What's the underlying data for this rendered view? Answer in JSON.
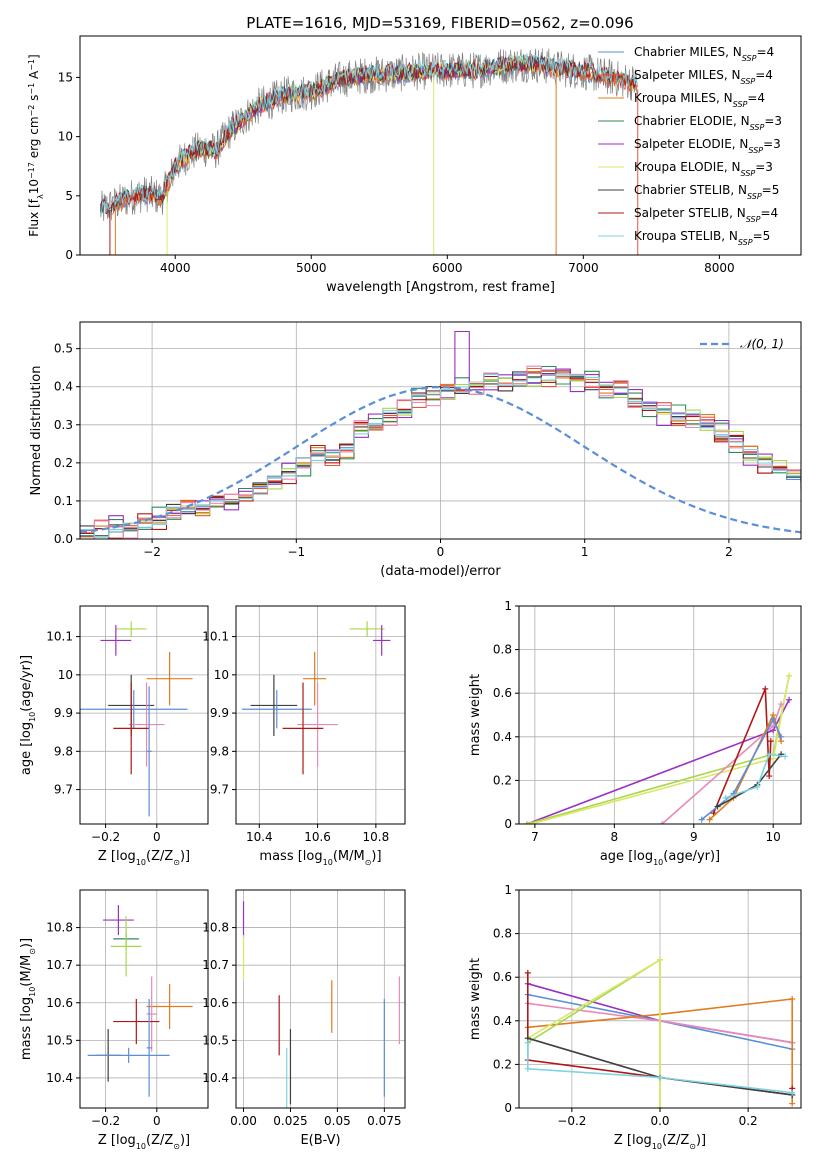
{
  "figure_title": "PLATE=1616, MJD=53169, FIBERID=0562, z=0.096",
  "colors": {
    "data": "#808080",
    "chabrier_miles": "#5b8fd6",
    "salpeter_miles": "#e8563a",
    "kroupa_miles": "#e07b1f",
    "chabrier_elodie": "#2e8b57",
    "salpeter_elodie": "#9b30c0",
    "kroupa_elodie": "#d9e86a",
    "chabrier_stelib": "#404040",
    "salpeter_stelib": "#b01818",
    "kroupa_stelib": "#7dd3e0",
    "pink": "#e88ab8",
    "lime": "#a8d84a",
    "gaussian": "#5b8fd6",
    "grid": "#b0b0b0"
  },
  "chart_data": [
    {
      "id": "spectrum",
      "type": "line",
      "xlabel": "wavelength [Angstrom, rest frame]",
      "ylabel": "Flux [f",
      "ylabel_parts": [
        "Flux [f",
        "λ",
        "10",
        "−17",
        " erg cm",
        "−2",
        " s",
        "−1",
        " A",
        "−1",
        "]"
      ],
      "xlim": [
        3300,
        8600
      ],
      "ylim": [
        0,
        18.5
      ],
      "xticks": [
        4000,
        5000,
        6000,
        7000,
        8000
      ],
      "yticks": [
        0,
        5,
        10,
        15
      ],
      "grid": false,
      "legend_position": "right",
      "legend": [
        {
          "model": "Chabrier MILES",
          "n": "4",
          "color_key": "chabrier_miles"
        },
        {
          "model": "Salpeter MILES",
          "n": "4",
          "color_key": "salpeter_miles"
        },
        {
          "model": "Kroupa MILES",
          "n": "4",
          "color_key": "kroupa_miles"
        },
        {
          "model": "Chabrier ELODIE",
          "n": "3",
          "color_key": "chabrier_elodie"
        },
        {
          "model": "Salpeter ELODIE",
          "n": "3",
          "color_key": "salpeter_elodie"
        },
        {
          "model": "Kroupa ELODIE",
          "n": "3",
          "color_key": "kroupa_elodie"
        },
        {
          "model": "Chabrier STELIB",
          "n": "5",
          "color_key": "chabrier_stelib"
        },
        {
          "model": "Salpeter STELIB",
          "n": "4",
          "color_key": "salpeter_stelib"
        },
        {
          "model": "Kroupa STELIB",
          "n": "5",
          "color_key": "kroupa_stelib"
        }
      ],
      "legend_n_prefix": "N",
      "legend_n_sub": "SSP",
      "continuum": {
        "x": [
          3450,
          3600,
          3700,
          3800,
          3900,
          4000,
          4100,
          4200,
          4300,
          4400,
          4500,
          4600,
          4800,
          5000,
          5200,
          5400,
          5600,
          5800,
          6000,
          6200,
          6400,
          6600,
          6800,
          7000,
          7200,
          7400
        ],
        "y": [
          3.8,
          4.5,
          5.0,
          5.2,
          4.8,
          7.5,
          8.5,
          9.0,
          8.8,
          10.5,
          11.5,
          12.5,
          13.5,
          13.8,
          14.8,
          15.2,
          15.3,
          15.5,
          15.6,
          15.6,
          16.0,
          16.2,
          15.8,
          15.5,
          15.0,
          14.5
        ]
      }
    },
    {
      "id": "residuals",
      "type": "histogram",
      "xlabel": "(data-model)/error",
      "ylabel": "Normed distribution",
      "xlim": [
        -2.5,
        2.5
      ],
      "ylim": [
        0,
        0.57
      ],
      "xticks": [
        -2,
        -1,
        0,
        1,
        2
      ],
      "yticks": [
        0.0,
        0.1,
        0.2,
        0.3,
        0.4,
        0.5
      ],
      "grid": true,
      "legend_position": "top-right",
      "legend": "𝒩(0, 1)",
      "bin_width": 0.1,
      "bins_from": -2.5,
      "histogram_values": [
        0.02,
        0.02,
        0.03,
        0.03,
        0.04,
        0.05,
        0.07,
        0.08,
        0.08,
        0.1,
        0.1,
        0.12,
        0.14,
        0.15,
        0.17,
        0.2,
        0.22,
        0.22,
        0.24,
        0.28,
        0.3,
        0.33,
        0.34,
        0.37,
        0.38,
        0.38,
        0.4,
        0.4,
        0.42,
        0.41,
        0.42,
        0.42,
        0.43,
        0.44,
        0.42,
        0.41,
        0.4,
        0.39,
        0.36,
        0.35,
        0.33,
        0.32,
        0.32,
        0.3,
        0.28,
        0.26,
        0.22,
        0.2,
        0.19,
        0.17,
        0.15,
        0.14,
        0.13,
        0.11,
        0.09,
        0.08,
        0.07,
        0.06,
        0.05,
        0.04,
        0.03,
        0.03,
        0.02,
        0.02,
        0.02,
        0.02
      ],
      "series_offsets": [
        0.0,
        0.015,
        -0.012,
        0.02,
        -0.018,
        0.008,
        -0.006,
        0.012,
        -0.02
      ]
    },
    {
      "id": "age_vs_z",
      "type": "scatter",
      "xlabel": "Z [log",
      "xlabel_parts": [
        "Z [log",
        "10",
        "(Z/Z",
        "⊙",
        ")]"
      ],
      "ylabel_parts": [
        "age  [log",
        "10",
        "(age/yr)]"
      ],
      "xlim": [
        -0.3,
        0.2
      ],
      "ylim": [
        9.61,
        10.18
      ],
      "xticks": [
        -0.2,
        0.0
      ],
      "yticks": [
        9.7,
        9.8,
        9.9,
        10.0,
        10.1
      ],
      "grid": true,
      "points": [
        {
          "x": -0.1,
          "y": 10.12,
          "xerr": 0.06,
          "yerr": 0.02,
          "color_key": "lime"
        },
        {
          "x": -0.16,
          "y": 10.09,
          "xerr": 0.06,
          "yerr": 0.04,
          "color_key": "salpeter_elodie"
        },
        {
          "x": 0.05,
          "y": 9.99,
          "xerr": 0.09,
          "yerr": 0.07,
          "color_key": "kroupa_miles"
        },
        {
          "x": -0.1,
          "y": 9.92,
          "xerr": 0.09,
          "yerr": 0.08,
          "color_key": "chabrier_stelib"
        },
        {
          "x": -0.09,
          "y": 9.91,
          "xerr": 0.21,
          "yerr": 0.05,
          "color_key": "chabrier_miles"
        },
        {
          "x": -0.04,
          "y": 9.87,
          "xerr": 0.07,
          "yerr": 0.11,
          "color_key": "pink"
        },
        {
          "x": -0.1,
          "y": 9.86,
          "xerr": 0.07,
          "yerr": 0.12,
          "color_key": "salpeter_stelib"
        },
        {
          "x": -0.03,
          "y": 9.8,
          "xerr": 0.01,
          "yerr": 0.17,
          "color_key": "chabrier_miles"
        }
      ]
    },
    {
      "id": "age_vs_mass",
      "type": "scatter",
      "xlabel_parts": [
        "mass [log",
        "10",
        "(M/M",
        "⊙",
        ")]"
      ],
      "xlim": [
        10.32,
        10.9
      ],
      "ylim": [
        9.61,
        10.18
      ],
      "xticks": [
        10.4,
        10.6,
        10.8
      ],
      "yticks": [
        9.7,
        9.8,
        9.9,
        10.0,
        10.1
      ],
      "grid": true,
      "points": [
        {
          "x": 10.77,
          "y": 10.12,
          "xerr": 0.06,
          "yerr": 0.02,
          "color_key": "lime"
        },
        {
          "x": 10.82,
          "y": 10.09,
          "xerr": 0.03,
          "yerr": 0.04,
          "color_key": "salpeter_elodie"
        },
        {
          "x": 10.59,
          "y": 9.99,
          "xerr": 0.04,
          "yerr": 0.07,
          "color_key": "kroupa_miles"
        },
        {
          "x": 10.45,
          "y": 9.92,
          "xerr": 0.08,
          "yerr": 0.08,
          "color_key": "chabrier_stelib"
        },
        {
          "x": 10.46,
          "y": 9.91,
          "xerr": 0.12,
          "yerr": 0.05,
          "color_key": "chabrier_miles"
        },
        {
          "x": 10.6,
          "y": 9.87,
          "xerr": 0.07,
          "yerr": 0.11,
          "color_key": "pink"
        },
        {
          "x": 10.55,
          "y": 9.86,
          "xerr": 0.07,
          "yerr": 0.12,
          "color_key": "salpeter_stelib"
        }
      ]
    },
    {
      "id": "weight_vs_age",
      "type": "line",
      "xlabel_parts": [
        "age  [log",
        "10",
        "(age/yr)]"
      ],
      "ylabel": "mass weight",
      "xlim": [
        6.8,
        10.35
      ],
      "ylim": [
        0,
        1.0
      ],
      "xticks": [
        7,
        8,
        9,
        10
      ],
      "yticks": [
        0.0,
        0.2,
        0.4,
        0.6,
        0.8,
        1.0
      ],
      "grid": true,
      "series": [
        {
          "color_key": "salpeter_elodie",
          "x": [
            6.9,
            10.0,
            10.2
          ],
          "y": [
            0.0,
            0.43,
            0.57
          ]
        },
        {
          "color_key": "lime",
          "x": [
            6.9,
            10.0,
            10.2
          ],
          "y": [
            0.0,
            0.32,
            0.68
          ]
        },
        {
          "color_key": "kroupa_elodie",
          "x": [
            6.95,
            10.0,
            10.2
          ],
          "y": [
            0.0,
            0.3,
            0.68
          ]
        },
        {
          "color_key": "pink",
          "x": [
            8.6,
            10.0,
            10.1
          ],
          "y": [
            0.0,
            0.45,
            0.55
          ]
        },
        {
          "color_key": "salpeter_stelib",
          "x": [
            9.25,
            9.9,
            9.95,
            9.97
          ],
          "y": [
            0.05,
            0.62,
            0.22,
            0.38
          ]
        },
        {
          "color_key": "kroupa_miles",
          "x": [
            9.2,
            9.5,
            10.0,
            10.1
          ],
          "y": [
            0.02,
            0.12,
            0.5,
            0.38
          ]
        },
        {
          "color_key": "chabrier_miles",
          "x": [
            9.1,
            9.5,
            10.0,
            10.1
          ],
          "y": [
            0.02,
            0.14,
            0.48,
            0.4
          ]
        },
        {
          "color_key": "chabrier_stelib",
          "x": [
            9.3,
            9.8,
            10.1
          ],
          "y": [
            0.08,
            0.18,
            0.32
          ]
        },
        {
          "color_key": "kroupa_stelib",
          "x": [
            9.4,
            9.8,
            9.95,
            10.15
          ],
          "y": [
            0.12,
            0.17,
            0.32,
            0.31
          ]
        }
      ]
    },
    {
      "id": "mass_vs_z",
      "type": "scatter",
      "xlabel_parts": [
        "Z [log",
        "10",
        "(Z/Z",
        "⊙",
        ")]"
      ],
      "ylabel_parts": [
        "mass [log",
        "10",
        "(M/M",
        "⊙",
        ")]"
      ],
      "xlim": [
        -0.3,
        0.2
      ],
      "ylim": [
        10.32,
        10.9
      ],
      "xticks": [
        -0.2,
        0.0
      ],
      "yticks": [
        10.4,
        10.5,
        10.6,
        10.7,
        10.8
      ],
      "grid": true,
      "points": [
        {
          "x": -0.15,
          "y": 10.82,
          "xerr": 0.06,
          "yerr": 0.04,
          "color_key": "salpeter_elodie"
        },
        {
          "x": -0.12,
          "y": 10.77,
          "xerr": 0.05,
          "yerr": 0.02,
          "color_key": "chabrier_elodie"
        },
        {
          "x": -0.12,
          "y": 10.75,
          "xerr": 0.06,
          "yerr": 0.08,
          "color_key": "lime"
        },
        {
          "x": 0.05,
          "y": 10.59,
          "xerr": 0.09,
          "yerr": 0.06,
          "color_key": "kroupa_miles"
        },
        {
          "x": -0.02,
          "y": 10.57,
          "xerr": 0.02,
          "yerr": 0.1,
          "color_key": "pink"
        },
        {
          "x": -0.08,
          "y": 10.55,
          "xerr": 0.09,
          "yerr": 0.06,
          "color_key": "salpeter_stelib"
        },
        {
          "x": -0.19,
          "y": 10.46,
          "xerr": 0.05,
          "yerr": 0.07,
          "color_key": "chabrier_stelib"
        },
        {
          "x": -0.11,
          "y": 10.46,
          "xerr": 0.16,
          "yerr": 0.02,
          "color_key": "chabrier_miles"
        },
        {
          "x": -0.03,
          "y": 10.48,
          "xerr": 0.01,
          "yerr": 0.13,
          "color_key": "chabrier_miles"
        }
      ]
    },
    {
      "id": "mass_vs_ebv",
      "type": "scatter",
      "xlabel": "E(B-V)",
      "xlim": [
        -0.004,
        0.086
      ],
      "ylim": [
        10.32,
        10.9
      ],
      "xticks": [
        0.0,
        0.025,
        0.05,
        0.075
      ],
      "xtick_labels": [
        "0.00",
        "0.025",
        "0.05",
        "0.075"
      ],
      "yticks": [
        10.4,
        10.5,
        10.6,
        10.7,
        10.8
      ],
      "grid": true,
      "points": [
        {
          "x": 0.0,
          "y": 10.82,
          "xerr": 0.0,
          "yerr": 0.05,
          "color_key": "salpeter_elodie"
        },
        {
          "x": 0.0,
          "y": 10.72,
          "xerr": 0.0,
          "yerr": 0.06,
          "color_key": "kroupa_elodie"
        },
        {
          "x": 0.047,
          "y": 10.59,
          "xerr": 0.0,
          "yerr": 0.07,
          "color_key": "kroupa_miles"
        },
        {
          "x": 0.019,
          "y": 10.54,
          "xerr": 0.0,
          "yerr": 0.08,
          "color_key": "salpeter_stelib"
        },
        {
          "x": 0.025,
          "y": 10.43,
          "xerr": 0.0,
          "yerr": 0.1,
          "color_key": "chabrier_stelib"
        },
        {
          "x": 0.023,
          "y": 10.4,
          "xerr": 0.0,
          "yerr": 0.08,
          "color_key": "kroupa_stelib"
        },
        {
          "x": 0.075,
          "y": 10.48,
          "xerr": 0.0,
          "yerr": 0.13,
          "color_key": "chabrier_miles"
        },
        {
          "x": 0.083,
          "y": 10.58,
          "xerr": 0.0,
          "yerr": 0.09,
          "color_key": "pink"
        }
      ]
    },
    {
      "id": "weight_vs_z",
      "type": "line",
      "xlabel_parts": [
        "Z [log",
        "10",
        "(Z/Z",
        "⊙",
        ")]"
      ],
      "ylabel": "mass weight",
      "xlim": [
        -0.32,
        0.32
      ],
      "ylim": [
        0,
        1.0
      ],
      "xticks": [
        -0.2,
        0.0,
        0.2
      ],
      "xtick_labels": [
        "−0.2",
        "0.0",
        "0.2"
      ],
      "yticks": [
        0.0,
        0.2,
        0.4,
        0.6,
        0.8,
        1.0
      ],
      "grid": true,
      "series": [
        {
          "color_key": "salpeter_elodie",
          "x": [
            -0.3,
            0.0,
            0.3
          ],
          "y": [
            0.57,
            0.4,
            0.3
          ]
        },
        {
          "color_key": "chabrier_miles",
          "x": [
            -0.3,
            0.0,
            0.3
          ],
          "y": [
            0.52,
            0.4,
            0.27
          ]
        },
        {
          "color_key": "pink",
          "x": [
            -0.3,
            0.0,
            0.3
          ],
          "y": [
            0.48,
            0.4,
            0.3
          ]
        },
        {
          "color_key": "kroupa_miles",
          "x": [
            -0.3,
            0.0,
            0.3,
            0.3
          ],
          "y": [
            0.37,
            0.43,
            0.5,
            0.02
          ]
        },
        {
          "color_key": "lime",
          "x": [
            -0.3,
            0.0,
            0.0
          ],
          "y": [
            0.3,
            0.68,
            0.0
          ]
        },
        {
          "color_key": "kroupa_elodie",
          "x": [
            -0.3,
            0.0,
            0.0
          ],
          "y": [
            0.32,
            0.68,
            0.0
          ]
        },
        {
          "color_key": "salpeter_stelib",
          "x": [
            -0.3,
            -0.3,
            0.0,
            0.3,
            0.3
          ],
          "y": [
            0.62,
            0.22,
            0.14,
            0.06,
            0.09
          ]
        },
        {
          "color_key": "chabrier_stelib",
          "x": [
            -0.3,
            0.0,
            0.3
          ],
          "y": [
            0.32,
            0.14,
            0.06
          ]
        },
        {
          "color_key": "kroupa_stelib",
          "x": [
            -0.3,
            -0.3,
            0.0,
            0.3
          ],
          "y": [
            0.3,
            0.18,
            0.14,
            0.07
          ]
        }
      ]
    }
  ]
}
